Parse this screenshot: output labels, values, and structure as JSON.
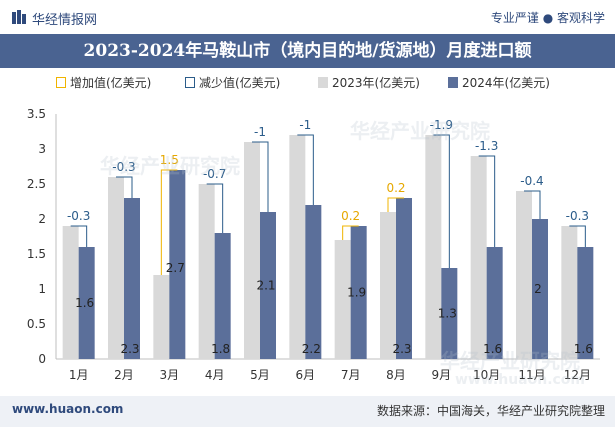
{
  "header": {
    "brand": "华经情报网",
    "slogan": "专业严谨 ● 客观科学"
  },
  "footer": {
    "website": "www.huaon.com",
    "source": "数据来源：中国海关，华经产业研究院整理"
  },
  "watermarks": [
    "华经产业研究院",
    "华经产业研究院",
    "华经产业研究院",
    "www.huaon.com"
  ],
  "colors": {
    "series2023": "#d9d9d9",
    "series2024": "#5b6f9a",
    "increase": "#f0b400",
    "decrease": "#2b5c8a",
    "titlebar": "#4a6391"
  },
  "chart_data": {
    "type": "bar",
    "title": "2023-2024年马鞍山市（境内目的地/货源地）月度进口额",
    "categories": [
      "1月",
      "2月",
      "3月",
      "4月",
      "5月",
      "6月",
      "7月",
      "8月",
      "9月",
      "10月",
      "11月",
      "12月"
    ],
    "series": [
      {
        "name": "2023年(亿美元)",
        "values": [
          1.9,
          2.6,
          1.2,
          2.5,
          3.1,
          3.2,
          1.7,
          2.1,
          3.2,
          2.9,
          2.4,
          1.9
        ]
      },
      {
        "name": "2024年(亿美元)",
        "values": [
          1.6,
          2.3,
          2.7,
          1.8,
          2.1,
          2.2,
          1.9,
          2.3,
          1.3,
          1.6,
          2.0,
          1.6
        ]
      }
    ],
    "bar_labels_2024": [
      "1.6",
      "2.3",
      "2.7",
      "1.8",
      "2.1",
      "2.2",
      "1.9",
      "2.3",
      "1.3",
      "1.6",
      "2",
      "1.6"
    ],
    "change": {
      "increase_name": "增加值(亿美元)",
      "decrease_name": "减少值(亿美元)",
      "values": [
        -0.3,
        -0.3,
        1.5,
        -0.7,
        -1,
        -1,
        0.2,
        0.2,
        -1.9,
        -1.3,
        -0.4,
        -0.3
      ],
      "labels": [
        "-0.3",
        "-0.3",
        "1.5",
        "-0.7",
        "-1",
        "-1",
        "0.2",
        "0.2",
        "-1.9",
        "-1.3",
        "-0.4",
        "-0.3"
      ]
    },
    "ylim": [
      0,
      3.5
    ],
    "yticks": [
      "0",
      "0.5",
      "1",
      "1.5",
      "2",
      "2.5",
      "3",
      "3.5"
    ],
    "ytick_values": [
      0,
      0.5,
      1,
      1.5,
      2,
      2.5,
      3,
      3.5
    ],
    "legend": [
      "增加值(亿美元)",
      "减少值(亿美元)",
      "2023年(亿美元)",
      "2024年(亿美元)"
    ],
    "legend_position": "top"
  }
}
